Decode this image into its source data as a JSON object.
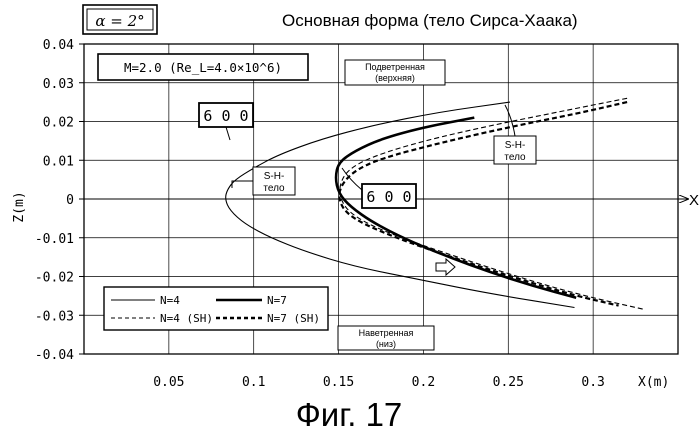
{
  "header": {
    "alpha_badge": "α = 2°",
    "title": "Основная форма (тело Сирса-Хаака)"
  },
  "caption": "Фиг. 17",
  "annotations": {
    "mach_box": "M=2.0 (Re_L=4.0×10^6)",
    "leeward_line1": "Подветренная",
    "leeward_line2": "(верхняя)",
    "windward_line1": "Наветренная",
    "windward_line2": "(низ)",
    "label_600_a": "6 0 0",
    "label_600_b": "6 0 0",
    "sh_left_line1": "S-H-",
    "sh_left_line2": "тело",
    "sh_right_line1": "S-H-",
    "sh_right_line2": "тело",
    "x_arrow_label": "X"
  },
  "chart_data": {
    "type": "line",
    "title": "Основная форма (тело Сирса-Хаака)",
    "xlabel": "X(m)",
    "ylabel": "Z(m)",
    "xlim": [
      0,
      0.35
    ],
    "ylim": [
      -0.04,
      0.04
    ],
    "x_ticks": [
      "0.05",
      "0.1",
      "0.15",
      "0.2",
      "0.25",
      "0.3"
    ],
    "x_tick_values": [
      0.05,
      0.1,
      0.15,
      0.2,
      0.25,
      0.3
    ],
    "y_ticks": [
      "0.04",
      "0.03",
      "0.02",
      "0.01",
      "0",
      "-0.01",
      "-0.02",
      "-0.03",
      "-0.04"
    ],
    "y_tick_values": [
      0.04,
      0.03,
      0.02,
      0.01,
      0,
      -0.01,
      -0.02,
      -0.03,
      -0.04
    ],
    "grid": true,
    "legend_placement": "bottom-left",
    "series": [
      {
        "name": "N=4",
        "style": "thin-solid",
        "x": [
          0.251,
          0.21,
          0.17,
          0.14,
          0.115,
          0.1,
          0.089,
          0.0845,
          0.083,
          0.086,
          0.095,
          0.11,
          0.13,
          0.16,
          0.2,
          0.24,
          0.289
        ],
        "y": [
          0.025,
          0.0225,
          0.019,
          0.0155,
          0.0115,
          0.008,
          0.005,
          0.0025,
          0.0,
          -0.003,
          -0.0065,
          -0.01,
          -0.0135,
          -0.0175,
          -0.021,
          -0.0245,
          -0.028
        ]
      },
      {
        "name": "N=7",
        "style": "thick-solid",
        "x": [
          0.23,
          0.2,
          0.175,
          0.16,
          0.15,
          0.148,
          0.15,
          0.157,
          0.17,
          0.19,
          0.215,
          0.24,
          0.265,
          0.29
        ],
        "y": [
          0.021,
          0.0185,
          0.0155,
          0.0125,
          0.0095,
          0.0055,
          0.0015,
          -0.002,
          -0.006,
          -0.0105,
          -0.015,
          -0.019,
          -0.0225,
          -0.0255
        ]
      },
      {
        "name": "N=4 (SH)",
        "style": "thin-dashed",
        "x": [
          0.32,
          0.28,
          0.24,
          0.2,
          0.17,
          0.155,
          0.15,
          0.152,
          0.158,
          0.17,
          0.19,
          0.22,
          0.255,
          0.29,
          0.33
        ],
        "y": [
          0.026,
          0.0225,
          0.019,
          0.015,
          0.011,
          0.0075,
          0.003,
          -0.001,
          -0.004,
          -0.007,
          -0.0105,
          -0.015,
          -0.02,
          -0.0245,
          -0.0285
        ]
      },
      {
        "name": "N=7 (SH)",
        "style": "thick-dashed",
        "x": [
          0.32,
          0.29,
          0.25,
          0.21,
          0.175,
          0.158,
          0.15,
          0.151,
          0.157,
          0.17,
          0.19,
          0.22,
          0.255,
          0.29,
          0.315
        ],
        "y": [
          0.025,
          0.022,
          0.0185,
          0.0145,
          0.0105,
          0.007,
          0.0025,
          -0.0015,
          -0.0045,
          -0.0075,
          -0.011,
          -0.0155,
          -0.0205,
          -0.025,
          -0.0275
        ]
      }
    ]
  }
}
